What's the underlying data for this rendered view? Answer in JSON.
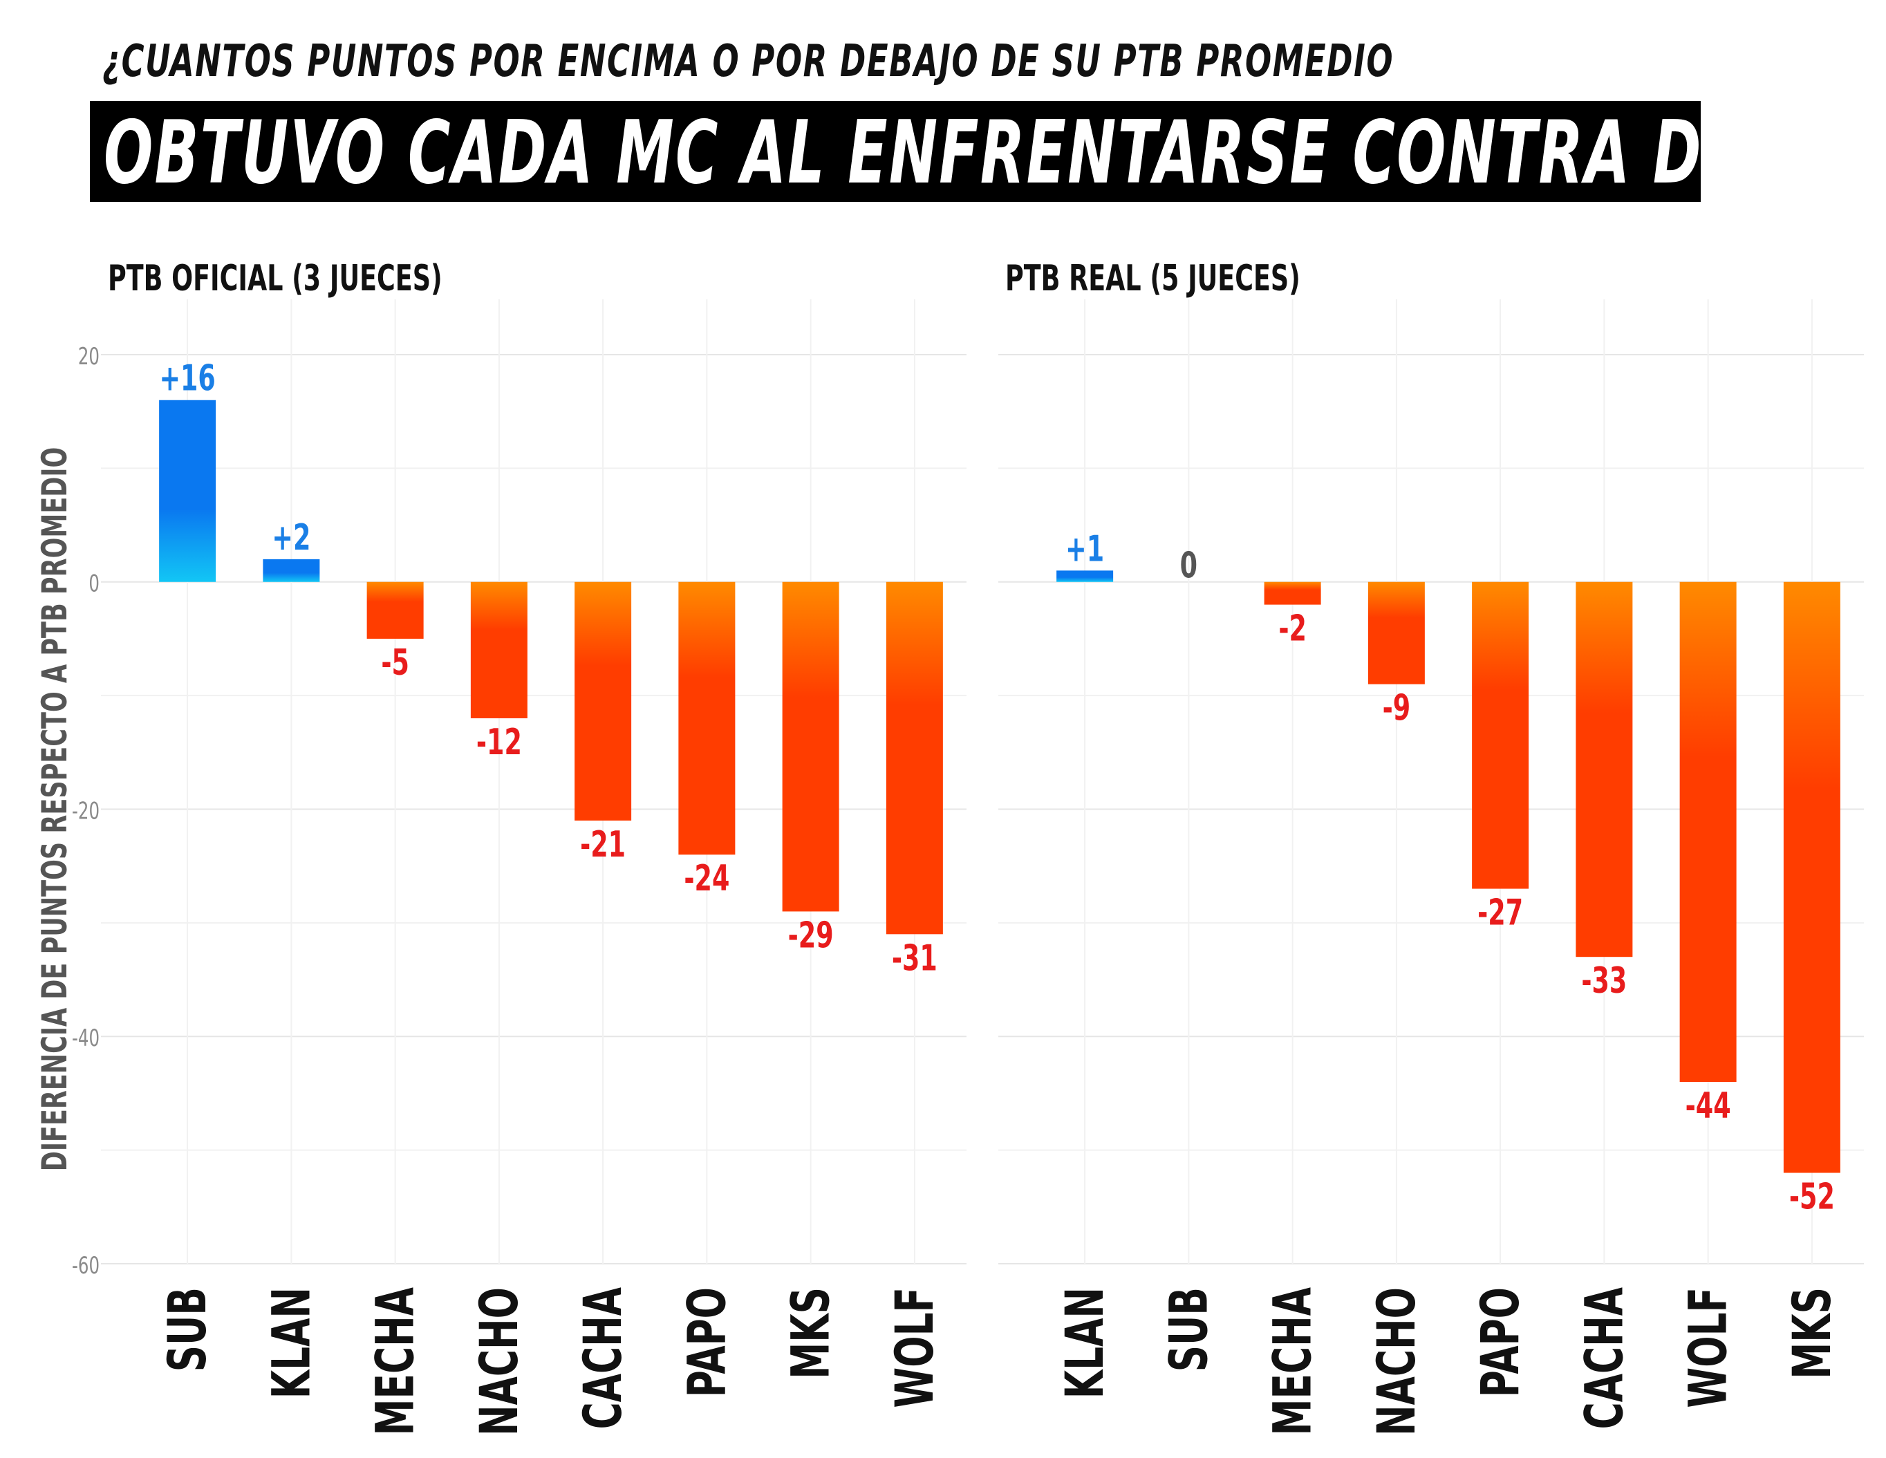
{
  "header": {
    "subtitle": "¿CUANTOS PUNTOS POR ENCIMA O POR DEBAJO DE SU PTB PROMEDIO",
    "title": "OBTUVO CADA MC AL ENFRENTARSE CONTRA DTOKE?"
  },
  "colors": {
    "positive_top": "#0a78f0",
    "positive_bottom": "#12c6f5",
    "negative_top": "#ff8a00",
    "negative_bottom": "#ff3d00",
    "positive_label": "#1a7fe6",
    "negative_label": "#e81c1c",
    "zero_label": "#555555"
  },
  "chart_data": [
    {
      "type": "bar",
      "title": "PTB OFICIAL (3 JUECES)",
      "ylabel": "DIFERENCIA DE PUNTOS RESPECTO A PTB PROMEDIO",
      "xlabel": "",
      "ylim": [
        -60,
        20
      ],
      "yticks": [
        20,
        0,
        -20,
        -40,
        -60
      ],
      "grid": true,
      "categories": [
        "SUB",
        "KLAN",
        "MECHA",
        "NACHO",
        "CACHA",
        "PAPO",
        "MKS",
        "WOLF"
      ],
      "values": [
        16,
        2,
        -5,
        -12,
        -21,
        -24,
        -29,
        -31
      ],
      "data_labels": [
        "+16",
        "+2",
        "-5",
        "-12",
        "-21",
        "-24",
        "-29",
        "-31"
      ]
    },
    {
      "type": "bar",
      "title": "PTB REAL (5 JUECES)",
      "xlabel": "",
      "ylim": [
        -60,
        20
      ],
      "grid": true,
      "categories": [
        "KLAN",
        "SUB",
        "MECHA",
        "NACHO",
        "PAPO",
        "CACHA",
        "WOLF",
        "MKS"
      ],
      "values": [
        1,
        0,
        -2,
        -9,
        -27,
        -33,
        -44,
        -52
      ],
      "data_labels": [
        "+1",
        "0",
        "-2",
        "-9",
        "-27",
        "-33",
        "-44",
        "-52"
      ]
    }
  ]
}
